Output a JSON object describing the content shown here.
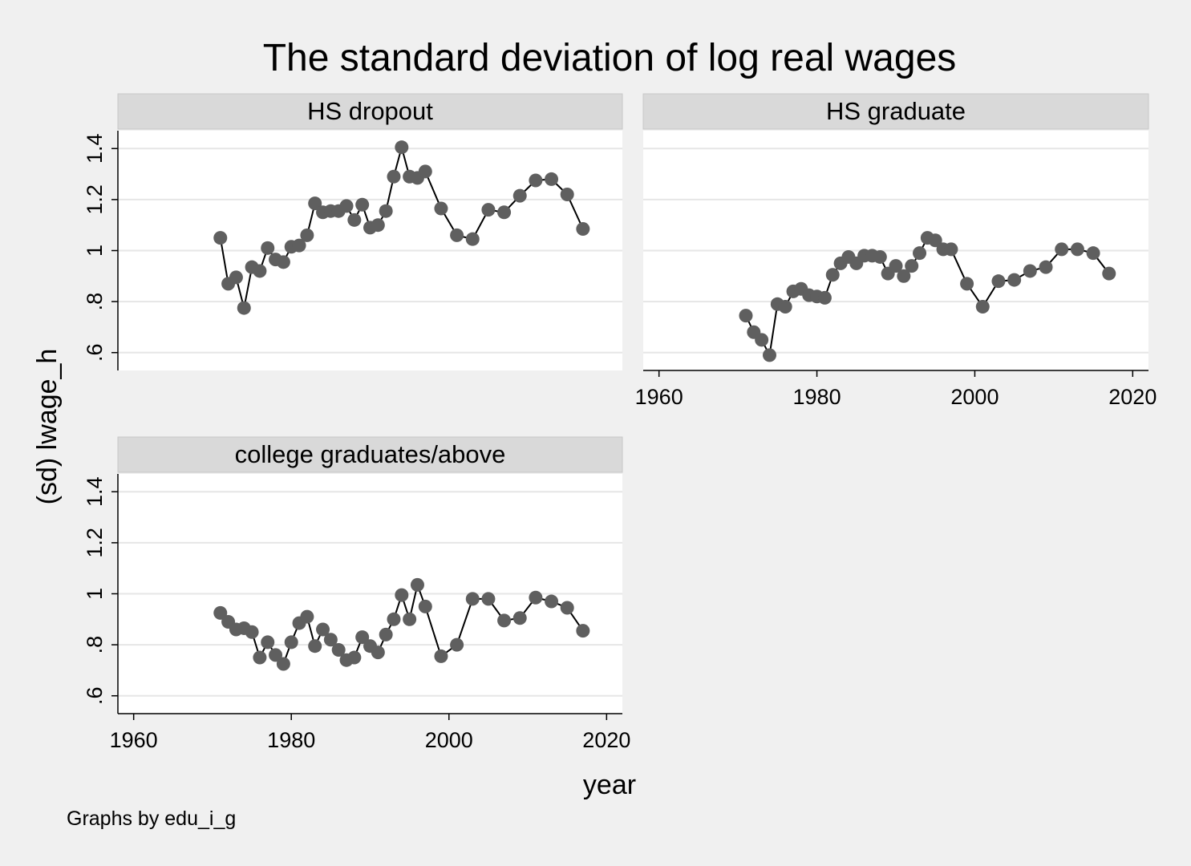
{
  "title": "The standard deviation of log real wages",
  "ylabel": "(sd) lwage_h",
  "xlabel": "year",
  "note": "Graphs by edu_i_g",
  "colors": {
    "background": "#f0f0f0",
    "plot_bg": "#ffffff",
    "strip_bg": "#d9d9d9",
    "grid": "#e6e6e6",
    "marker": "#5f5f5f",
    "line": "#000000"
  },
  "chart_data": [
    {
      "type": "line",
      "panel": "HS dropout",
      "xlim": [
        1958,
        2022
      ],
      "ylim": [
        0.53,
        1.47
      ],
      "xticks": [
        "1960",
        "1980",
        "2000",
        "2020"
      ],
      "yticks": [
        ".6",
        ".8",
        "1",
        "1.2",
        "1.4"
      ],
      "show_x_axis": false,
      "show_y_axis": true,
      "grid": true,
      "markers": true,
      "points": [
        [
          1971,
          1.05
        ],
        [
          1972,
          0.87
        ],
        [
          1973,
          0.895
        ],
        [
          1974,
          0.775
        ],
        [
          1975,
          0.935
        ],
        [
          1976,
          0.92
        ],
        [
          1977,
          1.01
        ],
        [
          1978,
          0.965
        ],
        [
          1979,
          0.955
        ],
        [
          1980,
          1.015
        ],
        [
          1981,
          1.02
        ],
        [
          1982,
          1.06
        ],
        [
          1983,
          1.185
        ],
        [
          1984,
          1.15
        ],
        [
          1985,
          1.155
        ],
        [
          1986,
          1.155
        ],
        [
          1987,
          1.175
        ],
        [
          1988,
          1.12
        ],
        [
          1989,
          1.18
        ],
        [
          1990,
          1.09
        ],
        [
          1991,
          1.1
        ],
        [
          1992,
          1.155
        ],
        [
          1993,
          1.29
        ],
        [
          1994,
          1.405
        ],
        [
          1995,
          1.29
        ],
        [
          1996,
          1.285
        ],
        [
          1997,
          1.31
        ],
        [
          1999,
          1.165
        ],
        [
          2001,
          1.06
        ],
        [
          2003,
          1.045
        ],
        [
          2005,
          1.16
        ],
        [
          2007,
          1.15
        ],
        [
          2009,
          1.215
        ],
        [
          2011,
          1.275
        ],
        [
          2013,
          1.28
        ],
        [
          2015,
          1.22
        ],
        [
          2017,
          1.085
        ]
      ]
    },
    {
      "type": "line",
      "panel": "HS graduate",
      "xlim": [
        1958,
        2022
      ],
      "ylim": [
        0.53,
        1.47
      ],
      "xticks": [
        "1960",
        "1980",
        "2000",
        "2020"
      ],
      "yticks": [
        ".6",
        ".8",
        "1",
        "1.2",
        "1.4"
      ],
      "show_x_axis": true,
      "show_y_axis": false,
      "grid": true,
      "markers": true,
      "points": [
        [
          1971,
          0.745
        ],
        [
          1972,
          0.68
        ],
        [
          1973,
          0.65
        ],
        [
          1974,
          0.59
        ],
        [
          1975,
          0.79
        ],
        [
          1976,
          0.78
        ],
        [
          1977,
          0.84
        ],
        [
          1978,
          0.85
        ],
        [
          1979,
          0.825
        ],
        [
          1980,
          0.82
        ],
        [
          1981,
          0.815
        ],
        [
          1982,
          0.905
        ],
        [
          1983,
          0.95
        ],
        [
          1984,
          0.975
        ],
        [
          1985,
          0.95
        ],
        [
          1986,
          0.98
        ],
        [
          1987,
          0.98
        ],
        [
          1988,
          0.975
        ],
        [
          1989,
          0.91
        ],
        [
          1990,
          0.94
        ],
        [
          1991,
          0.9
        ],
        [
          1992,
          0.94
        ],
        [
          1993,
          0.99
        ],
        [
          1994,
          1.05
        ],
        [
          1995,
          1.04
        ],
        [
          1996,
          1.005
        ],
        [
          1997,
          1.005
        ],
        [
          1999,
          0.87
        ],
        [
          2001,
          0.78
        ],
        [
          2003,
          0.88
        ],
        [
          2005,
          0.885
        ],
        [
          2007,
          0.92
        ],
        [
          2009,
          0.935
        ],
        [
          2011,
          1.005
        ],
        [
          2013,
          1.005
        ],
        [
          2015,
          0.99
        ],
        [
          2017,
          0.91
        ]
      ]
    },
    {
      "type": "line",
      "panel": "college graduates/above",
      "xlim": [
        1958,
        2022
      ],
      "ylim": [
        0.53,
        1.47
      ],
      "xticks": [
        "1960",
        "1980",
        "2000",
        "2020"
      ],
      "yticks": [
        ".6",
        ".8",
        "1",
        "1.2",
        "1.4"
      ],
      "show_x_axis": true,
      "show_y_axis": true,
      "grid": true,
      "markers": true,
      "points": [
        [
          1971,
          0.925
        ],
        [
          1972,
          0.89
        ],
        [
          1973,
          0.86
        ],
        [
          1974,
          0.865
        ],
        [
          1975,
          0.85
        ],
        [
          1976,
          0.75
        ],
        [
          1977,
          0.81
        ],
        [
          1978,
          0.76
        ],
        [
          1979,
          0.725
        ],
        [
          1980,
          0.81
        ],
        [
          1981,
          0.885
        ],
        [
          1982,
          0.91
        ],
        [
          1983,
          0.795
        ],
        [
          1984,
          0.86
        ],
        [
          1985,
          0.82
        ],
        [
          1986,
          0.78
        ],
        [
          1987,
          0.74
        ],
        [
          1988,
          0.75
        ],
        [
          1989,
          0.83
        ],
        [
          1990,
          0.795
        ],
        [
          1991,
          0.77
        ],
        [
          1992,
          0.84
        ],
        [
          1993,
          0.9
        ],
        [
          1994,
          0.995
        ],
        [
          1995,
          0.9
        ],
        [
          1996,
          1.035
        ],
        [
          1997,
          0.95
        ],
        [
          1999,
          0.755
        ],
        [
          2001,
          0.8
        ],
        [
          2003,
          0.98
        ],
        [
          2005,
          0.98
        ],
        [
          2007,
          0.895
        ],
        [
          2009,
          0.905
        ],
        [
          2011,
          0.985
        ],
        [
          2013,
          0.97
        ],
        [
          2015,
          0.945
        ],
        [
          2017,
          0.855
        ]
      ]
    }
  ]
}
